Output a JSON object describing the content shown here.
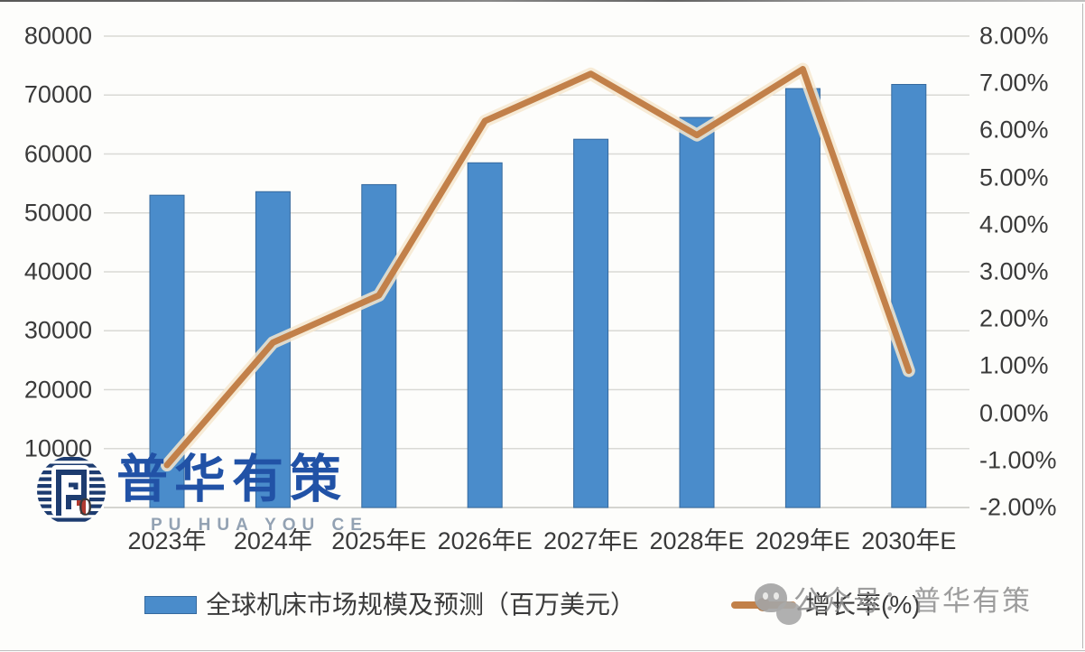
{
  "chart_data": {
    "type": "bar+line combo",
    "title": "",
    "categories": [
      "2023年",
      "2024年",
      "2025年E",
      "2026年E",
      "2027年E",
      "2028年E",
      "2029年E",
      "2030年E"
    ],
    "series": [
      {
        "name": "全球机床市场规模及预测（百万美元）",
        "type": "bar",
        "axis": "left",
        "color": "#4a8ccb",
        "values": [
          53000,
          53600,
          54800,
          58500,
          62500,
          66200,
          71100,
          71800
        ]
      },
      {
        "name": "增长率(%)",
        "type": "line",
        "axis": "right",
        "color": "#c28049",
        "values": [
          -1.1,
          1.5,
          2.5,
          6.2,
          7.2,
          5.9,
          7.3,
          0.9
        ]
      }
    ],
    "left_axis": {
      "min": 0,
      "max": 80000,
      "step": 10000,
      "tick_labels": [
        "80000",
        "70000",
        "60000",
        "50000",
        "40000",
        "30000",
        "20000",
        "10000",
        "0"
      ]
    },
    "right_axis": {
      "min": -2,
      "max": 8,
      "step": 1,
      "tick_labels": [
        "8.00%",
        "7.00%",
        "6.00%",
        "5.00%",
        "4.00%",
        "3.00%",
        "2.00%",
        "1.00%",
        "0.00%",
        "-1.00%",
        "-2.00%"
      ]
    },
    "grid": "horizontal",
    "legend_position": "bottom"
  },
  "colors": {
    "bar_fill": "#4a8ccb",
    "bar_border": "#35699e",
    "line_stroke": "#c28049",
    "line_glow": "#f6e7cf",
    "gridline": "#d9d9d5",
    "axis_text": "#3a3a3a",
    "watermark_blue": "#2152a6",
    "watermark_gray": "#8d8d8d"
  },
  "watermark": {
    "brand_cn": "普华有策",
    "brand_en": "PU HUA YOU CE",
    "footer": "公众号：普华有策"
  }
}
